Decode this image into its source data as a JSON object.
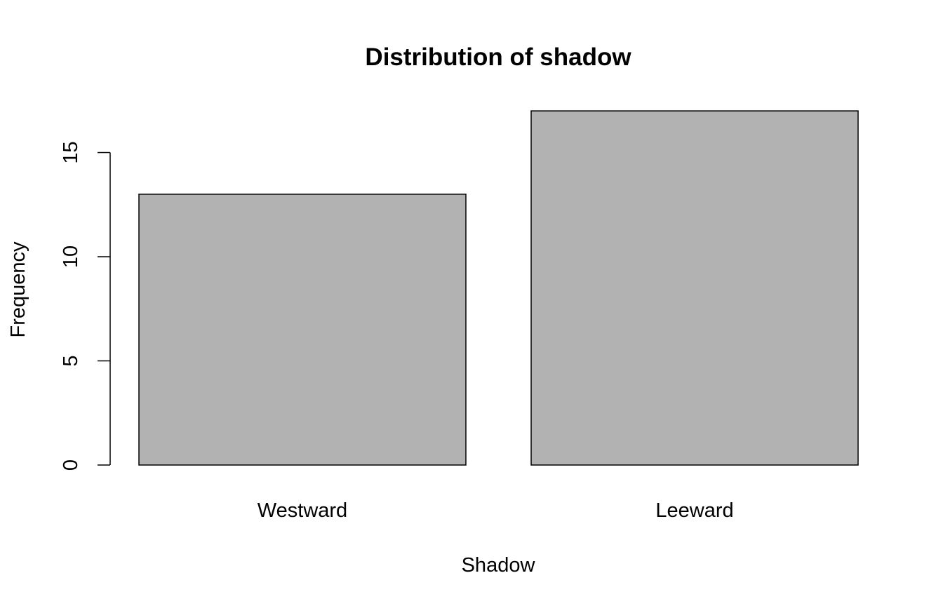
{
  "chart_data": {
    "type": "bar",
    "title": "Distribution of shadow",
    "xlabel": "Shadow",
    "ylabel": "Frequency",
    "categories": [
      "Westward",
      "Leeward"
    ],
    "values": [
      13,
      17
    ],
    "ylim": [
      0,
      17
    ],
    "yticks": [
      0,
      5,
      10,
      15
    ],
    "grid": false,
    "colors": {
      "bar_fill": "#b2b2b2",
      "bar_stroke": "#000000",
      "axis": "#000000",
      "background": "#ffffff"
    }
  }
}
